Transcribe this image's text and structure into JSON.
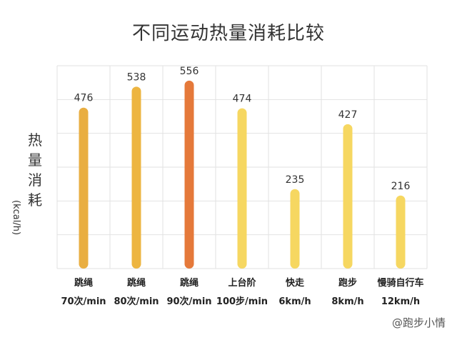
{
  "chart_data": {
    "type": "bar",
    "title": "不同运动热量消耗比较",
    "ylabel_chars": [
      "热",
      "量",
      "消",
      "耗"
    ],
    "yunit": "(kcal/h)",
    "categories": [
      {
        "name": "跳绳",
        "detail": "70次/min"
      },
      {
        "name": "跳绳",
        "detail": "80次/min"
      },
      {
        "name": "跳绳",
        "detail": "90次/min"
      },
      {
        "name": "上台阶",
        "detail": "100步/min"
      },
      {
        "name": "快走",
        "detail": "6km/h"
      },
      {
        "name": "跑步",
        "detail": "8km/h"
      },
      {
        "name": "慢骑自行车",
        "detail": "12km/h"
      }
    ],
    "values": [
      476,
      538,
      556,
      474,
      235,
      427,
      216
    ],
    "data_labels": [
      "476",
      "538",
      "556",
      "474",
      "235",
      "427",
      "216"
    ],
    "bar_colors": [
      "#E9AE41",
      "#EDB541",
      "#E5793A",
      "#F6D761",
      "#F6D761",
      "#F6D761",
      "#F6D761"
    ],
    "label_color": "#333333",
    "grid": true,
    "ylim": [
      0,
      600
    ]
  },
  "watermark": "@跑步小情"
}
